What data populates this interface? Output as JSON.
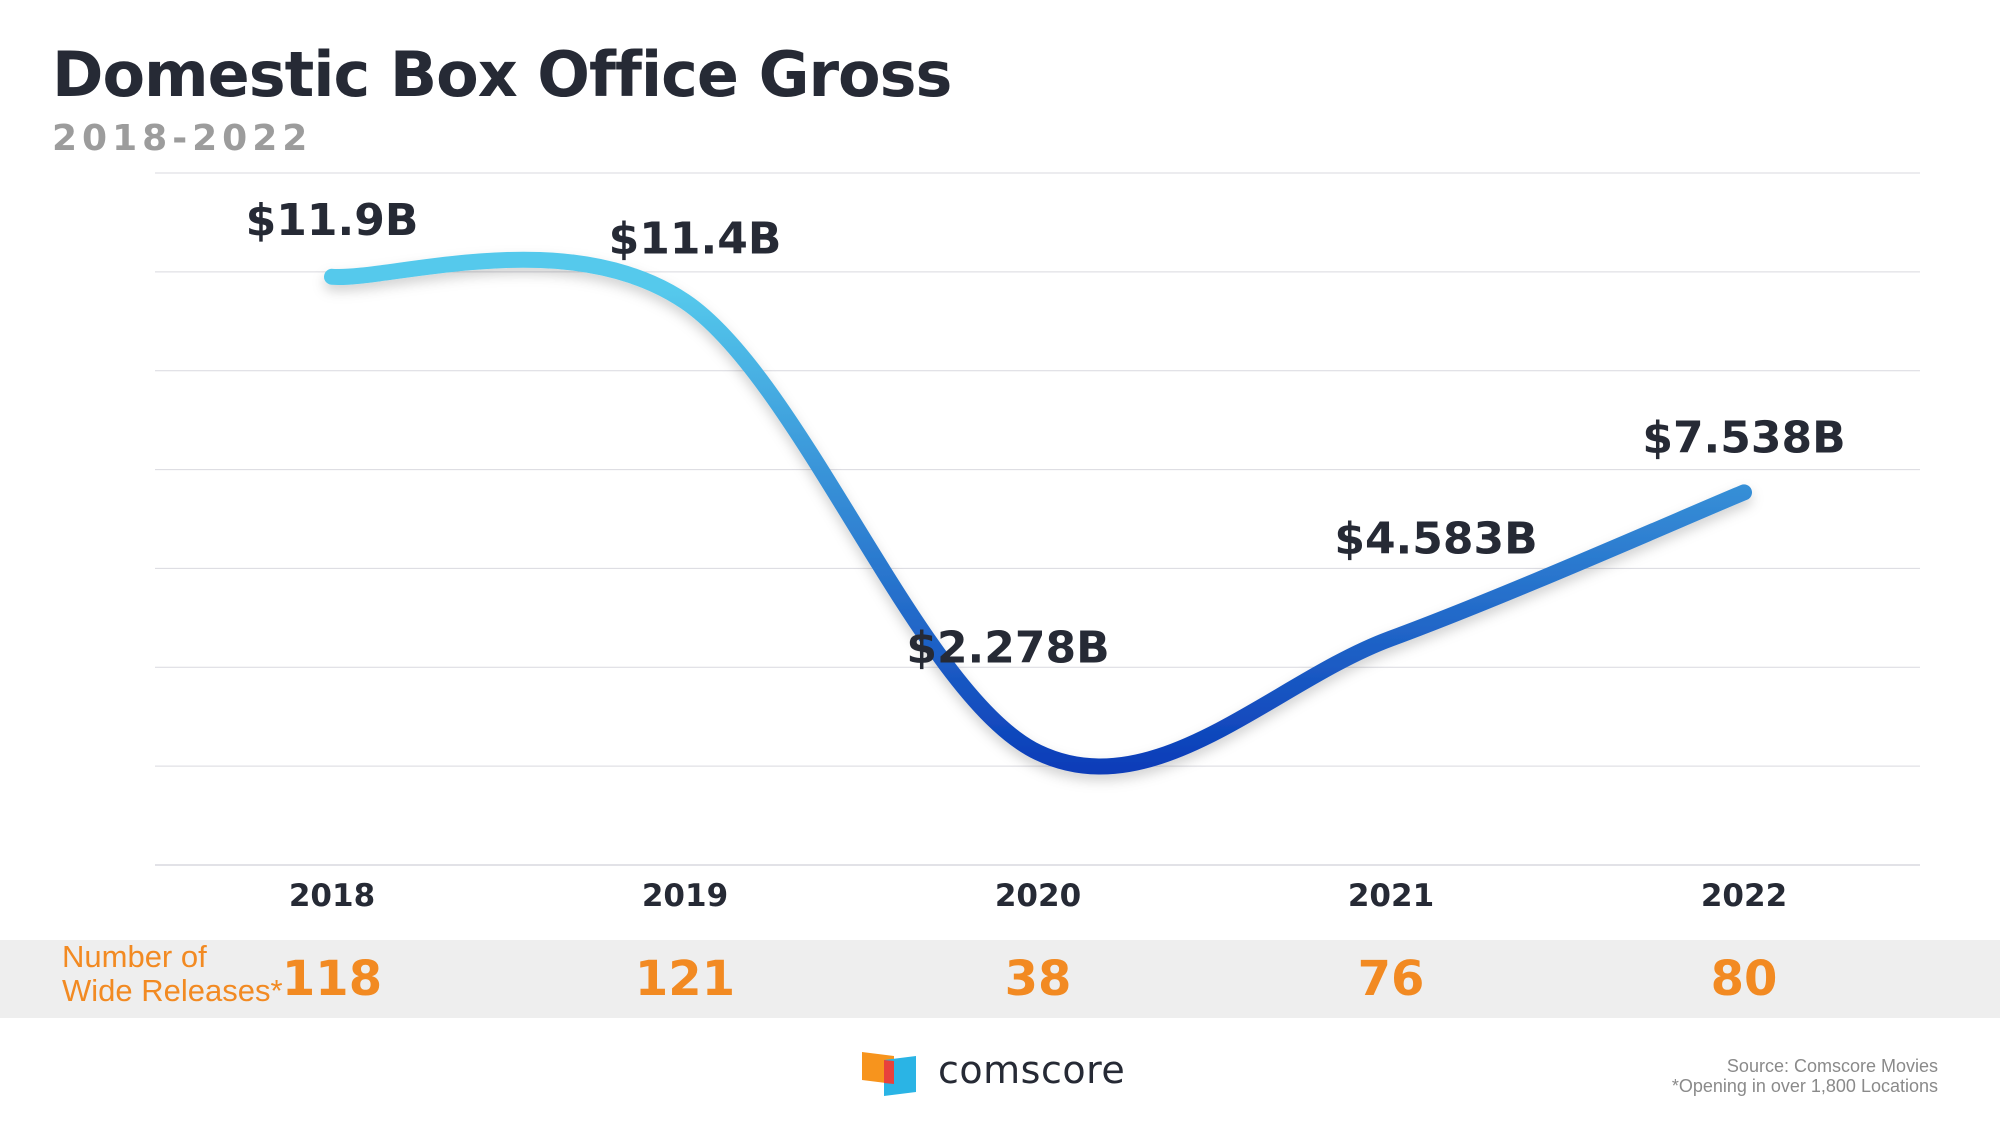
{
  "title": "Domestic Box Office Gross",
  "subtitle": "2018-2022",
  "chart_data": {
    "type": "line",
    "title": "Domestic Box Office Gross",
    "subtitle": "2018-2022",
    "categories": [
      "2018",
      "2019",
      "2020",
      "2021",
      "2022"
    ],
    "values": [
      11.9,
      11.4,
      2.278,
      4.583,
      7.538
    ],
    "value_labels": [
      "$11.9B",
      "$11.4B",
      "$2.278B",
      "$4.583B",
      "$7.538B"
    ],
    "ylim": [
      0,
      14
    ],
    "grid": true,
    "legend": "none",
    "line_gradient": [
      "#55c9ec",
      "#0a3bb8"
    ],
    "gridline_color": "#d9d9df"
  },
  "releases": {
    "label_line1": "Number of",
    "label_line2": "Wide Releases*",
    "values": [
      "118",
      "121",
      "38",
      "76",
      "80"
    ],
    "color": "#f28a22"
  },
  "footer": {
    "logo_text": "comscore",
    "source": "Source: Comscore Movies",
    "note": "*Opening in over 1,800 Locations"
  },
  "colors": {
    "title": "#262a35",
    "subtitle": "#9c9c9c",
    "band": "#eeeeee",
    "logo_orange": "#f7941d",
    "logo_red": "#e8413c",
    "logo_blue": "#2ab4e5"
  }
}
